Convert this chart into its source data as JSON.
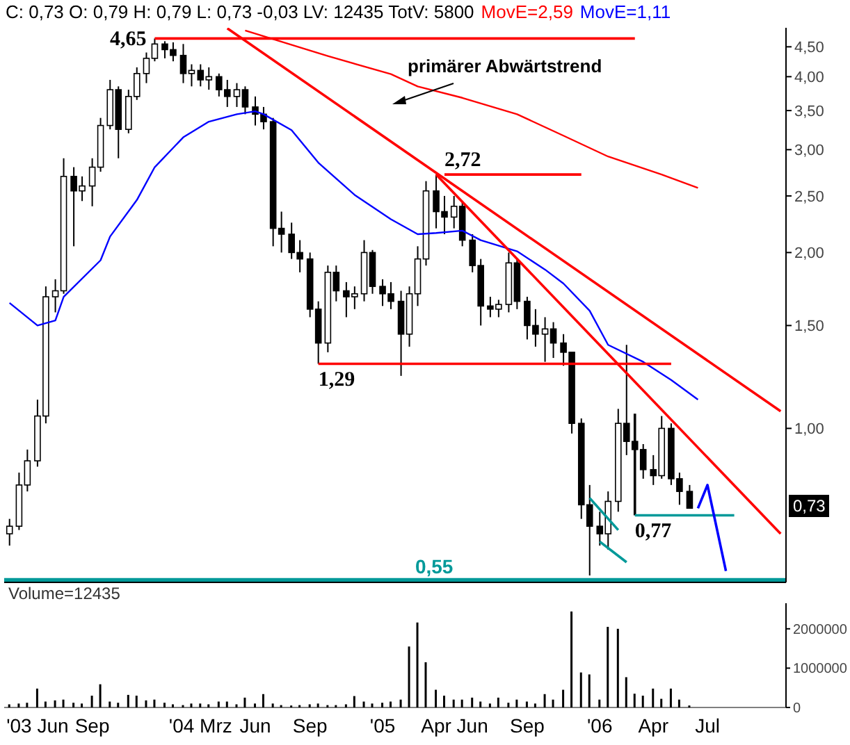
{
  "chart_data": [
    {
      "type": "candlestick",
      "title": "C: 0,73 O: 0,79 H: 0,79 L: 0,73 -0,03 LV: 12435 TotV: 5800",
      "legend": "top",
      "log": true,
      "tick_labels": "y",
      "color": "#000000",
      "x": [
        "2003-04-15",
        "2003-05-01",
        "2003-05-15",
        "2003-06-01",
        "2003-06-15",
        "2003-07-01",
        "2003-07-15",
        "2003-08-01",
        "2003-08-15",
        "2003-09-01",
        "2003-09-15",
        "2003-10-01",
        "2003-10-15",
        "2003-11-01",
        "2003-11-15",
        "2003-12-01",
        "2003-12-15",
        "2004-01-01",
        "2004-01-15",
        "2004-02-01",
        "2004-02-15",
        "2004-03-01",
        "2004-03-15",
        "2004-04-01",
        "2004-04-15",
        "2004-05-01",
        "2004-05-15",
        "2004-06-01",
        "2004-06-15",
        "2004-07-01",
        "2004-07-15",
        "2004-08-01",
        "2004-08-15",
        "2004-09-01",
        "2004-09-15",
        "2004-10-01",
        "2004-10-15",
        "2004-11-01",
        "2004-11-15",
        "2004-12-01",
        "2004-12-15",
        "2005-01-01",
        "2005-01-15",
        "2005-02-01",
        "2005-02-15",
        "2005-03-01",
        "2005-03-15",
        "2005-04-01",
        "2005-04-15",
        "2005-05-01",
        "2005-05-15",
        "2005-06-01",
        "2005-06-15",
        "2005-07-01",
        "2005-07-15",
        "2005-08-01",
        "2005-08-15",
        "2005-09-01",
        "2005-09-15",
        "2005-10-01",
        "2005-10-15",
        "2005-11-01",
        "2005-11-15",
        "2005-12-01",
        "2005-12-15",
        "2006-01-01",
        "2006-01-15",
        "2006-02-01",
        "2006-02-15",
        "2006-03-01",
        "2006-03-15",
        "2006-04-01",
        "2006-04-15",
        "2006-05-01",
        "2006-05-15",
        "2006-06-01"
      ],
      "ohlc": [
        [
          0.66,
          0.7,
          0.63,
          0.68
        ],
        [
          0.68,
          0.84,
          0.67,
          0.8
        ],
        [
          0.8,
          0.92,
          0.78,
          0.88
        ],
        [
          0.88,
          1.12,
          0.86,
          1.05
        ],
        [
          1.05,
          1.75,
          1.02,
          1.68
        ],
        [
          1.68,
          1.8,
          1.58,
          1.72
        ],
        [
          1.72,
          2.9,
          1.7,
          2.7
        ],
        [
          2.7,
          2.8,
          2.05,
          2.55
        ],
        [
          2.55,
          2.7,
          2.45,
          2.6
        ],
        [
          2.6,
          2.9,
          2.4,
          2.8
        ],
        [
          2.8,
          3.4,
          2.75,
          3.3
        ],
        [
          3.3,
          3.95,
          3.25,
          3.8
        ],
        [
          3.8,
          3.85,
          2.9,
          3.25
        ],
        [
          3.25,
          3.8,
          3.2,
          3.7
        ],
        [
          3.7,
          4.15,
          3.65,
          4.05
        ],
        [
          4.05,
          4.4,
          3.9,
          4.3
        ],
        [
          4.3,
          4.65,
          4.25,
          4.55
        ],
        [
          4.55,
          4.6,
          4.3,
          4.45
        ],
        [
          4.45,
          4.58,
          4.25,
          4.35
        ],
        [
          4.35,
          4.55,
          3.9,
          4.05
        ],
        [
          4.05,
          4.2,
          3.85,
          4.1
        ],
        [
          4.1,
          4.2,
          3.85,
          3.95
        ],
        [
          3.95,
          4.15,
          3.8,
          4.0
        ],
        [
          4.0,
          4.05,
          3.7,
          3.8
        ],
        [
          3.8,
          3.95,
          3.55,
          3.7
        ],
        [
          3.7,
          3.9,
          3.55,
          3.8
        ],
        [
          3.8,
          3.85,
          3.45,
          3.55
        ],
        [
          3.55,
          3.7,
          3.3,
          3.45
        ],
        [
          3.45,
          3.55,
          3.25,
          3.35
        ],
        [
          3.35,
          3.4,
          2.05,
          2.2
        ],
        [
          2.2,
          2.35,
          2.0,
          2.15
        ],
        [
          2.15,
          2.25,
          1.95,
          2.0
        ],
        [
          2.0,
          2.1,
          1.85,
          1.95
        ],
        [
          1.95,
          2.0,
          1.55,
          1.6
        ],
        [
          1.6,
          1.65,
          1.29,
          1.4
        ],
        [
          1.4,
          1.9,
          1.35,
          1.85
        ],
        [
          1.85,
          1.9,
          1.65,
          1.72
        ],
        [
          1.72,
          1.78,
          1.55,
          1.68
        ],
        [
          1.68,
          1.75,
          1.6,
          1.7
        ],
        [
          1.7,
          2.1,
          1.65,
          2.0
        ],
        [
          2.0,
          2.02,
          1.7,
          1.75
        ],
        [
          1.75,
          1.8,
          1.62,
          1.7
        ],
        [
          1.7,
          1.78,
          1.6,
          1.65
        ],
        [
          1.65,
          1.72,
          1.23,
          1.45
        ],
        [
          1.45,
          1.75,
          1.38,
          1.7
        ],
        [
          1.7,
          2.05,
          1.62,
          1.95
        ],
        [
          1.95,
          2.65,
          1.9,
          2.55
        ],
        [
          2.55,
          2.72,
          2.2,
          2.35
        ],
        [
          2.35,
          2.5,
          2.15,
          2.3
        ],
        [
          2.3,
          2.5,
          2.2,
          2.4
        ],
        [
          2.4,
          2.45,
          2.05,
          2.1
        ],
        [
          2.1,
          2.15,
          1.85,
          1.9
        ],
        [
          1.9,
          1.95,
          1.5,
          1.62
        ],
        [
          1.62,
          1.68,
          1.55,
          1.6
        ],
        [
          1.6,
          1.66,
          1.55,
          1.63
        ],
        [
          1.63,
          2.0,
          1.58,
          1.92
        ],
        [
          1.92,
          1.95,
          1.6,
          1.65
        ],
        [
          1.65,
          1.68,
          1.42,
          1.5
        ],
        [
          1.5,
          1.6,
          1.38,
          1.45
        ],
        [
          1.45,
          1.55,
          1.3,
          1.48
        ],
        [
          1.48,
          1.52,
          1.32,
          1.4
        ],
        [
          1.4,
          1.45,
          1.28,
          1.35
        ],
        [
          1.35,
          1.35,
          0.98,
          1.02
        ],
        [
          1.02,
          1.04,
          0.7,
          0.74
        ],
        [
          0.74,
          0.8,
          0.56,
          0.68
        ],
        [
          0.68,
          0.72,
          0.63,
          0.66
        ],
        [
          0.66,
          0.78,
          0.62,
          0.75
        ],
        [
          0.75,
          1.08,
          0.72,
          1.02
        ],
        [
          1.02,
          1.39,
          0.9,
          0.95
        ],
        [
          0.95,
          1.0,
          0.88,
          0.92
        ],
        [
          0.92,
          0.94,
          0.82,
          0.85
        ],
        [
          0.85,
          0.9,
          0.8,
          0.83
        ],
        [
          0.83,
          1.05,
          0.82,
          1.0
        ],
        [
          1.0,
          1.02,
          0.8,
          0.82
        ],
        [
          0.82,
          0.84,
          0.74,
          0.78
        ],
        [
          0.78,
          0.8,
          0.73,
          0.73
        ]
      ],
      "series": [
        {
          "type": "line",
          "name": "MovE=2,59",
          "color": "#ff0000",
          "x": [
            "2004-05-15",
            "2004-10-01",
            "2005-01-15",
            "2005-03-01",
            "2005-05-15",
            "2005-08-15",
            "2005-11-01",
            "2006-01-15",
            "2006-04-15",
            "2006-06-15"
          ],
          "values": [
            4.8,
            4.34,
            4.04,
            3.85,
            3.68,
            3.45,
            3.17,
            2.92,
            2.72,
            2.58
          ]
        },
        {
          "type": "line",
          "name": "MovE=1,11",
          "color": "#0000ff",
          "x": [
            "2003-04-15",
            "2003-06-01",
            "2003-07-01",
            "2003-07-15",
            "2003-09-15",
            "2003-10-01",
            "2003-11-15",
            "2003-12-15",
            "2004-02-01",
            "2004-03-15",
            "2004-05-01",
            "2004-06-01",
            "2004-06-15",
            "2004-08-01",
            "2004-09-15",
            "2004-11-15",
            "2005-01-15",
            "2005-03-01",
            "2005-04-01",
            "2005-05-15",
            "2005-06-15",
            "2005-08-15",
            "2005-10-01",
            "2005-11-01",
            "2005-12-15",
            "2006-01-15",
            "2006-03-15",
            "2006-05-01",
            "2006-06-15"
          ],
          "values": [
            1.64,
            1.5,
            1.53,
            1.68,
            1.94,
            2.13,
            2.46,
            2.8,
            3.15,
            3.35,
            3.45,
            3.49,
            3.45,
            3.24,
            2.85,
            2.51,
            2.28,
            2.15,
            2.16,
            2.18,
            2.1,
            2.01,
            1.87,
            1.77,
            1.59,
            1.39,
            1.3,
            1.21,
            1.12
          ]
        },
        {
          "type": "line",
          "color": "#ff0000",
          "x": [
            "2004-04-15",
            "2006-11-01"
          ],
          "values": [
            4.84,
            1.07
          ]
        },
        {
          "type": "line",
          "color": "#ff0000",
          "x": [
            "2005-04-01",
            "2006-11-01"
          ],
          "values": [
            2.72,
            0.66
          ]
        },
        {
          "type": "line",
          "color": "#ff0000",
          "x": [
            "2003-12-15",
            "2006-03-01"
          ],
          "values": [
            4.65,
            4.65
          ]
        },
        {
          "type": "line",
          "color": "#ff0000",
          "x": [
            "2005-04-15",
            "2005-12-01"
          ],
          "values": [
            2.72,
            2.72
          ]
        },
        {
          "type": "line",
          "color": "#ff0000",
          "x": [
            "2004-09-15",
            "2006-05-01"
          ],
          "values": [
            1.29,
            1.29
          ]
        },
        {
          "type": "line",
          "color": "#000000",
          "x": [
            "2006-03-01",
            "2006-03-01"
          ],
          "values": [
            1.06,
            0.71
          ]
        },
        {
          "type": "line",
          "color": "#009999",
          "x": [
            "2006-03-01",
            "2006-08-15"
          ],
          "values": [
            0.71,
            0.71
          ]
        },
        {
          "type": "line",
          "color": "#009999",
          "x": [
            "2005-12-15",
            "2006-02-01"
          ],
          "values": [
            0.76,
            0.67
          ]
        },
        {
          "type": "line",
          "color": "#009999",
          "x": [
            "2006-01-01",
            "2006-02-15"
          ],
          "values": [
            0.64,
            0.59
          ]
        },
        {
          "type": "line",
          "color": "#0000ff",
          "x": [
            "2006-06-15",
            "2006-07-01",
            "2006-08-01"
          ],
          "values": [
            0.73,
            0.8,
            0.57
          ]
        }
      ],
      "ref_lines": [
        {
          "axis": "y",
          "value": 0.55,
          "label": "0,55",
          "color": "#009999"
        }
      ],
      "annotations": [
        {
          "text": "4,65",
          "x": "2003-12-15",
          "y": 4.65
        },
        {
          "text": "2,72",
          "x": "2005-04-15",
          "y": 2.72
        },
        {
          "text": "1,29",
          "x": "2004-09-15",
          "y": 1.29
        },
        {
          "text": "0,77",
          "x": "2006-03-01",
          "y": 0.71
        },
        "primärer Abwärtstrend",
        "0,73"
      ],
      "xlim": [
        "2003-04-06",
        "2006-11-10"
      ],
      "ylim": [
        0.545,
        4.85
      ],
      "yticks": [
        {
          "value": 1,
          "label": "1,00"
        },
        {
          "value": 1.5,
          "label": "1,50"
        },
        {
          "value": 2,
          "label": "2,00"
        },
        {
          "value": 2.5,
          "label": "2,50"
        },
        {
          "value": 3,
          "label": "3,00"
        },
        {
          "value": 3.5,
          "label": "3,50"
        },
        {
          "value": 4,
          "label": "4,00"
        },
        {
          "value": 4.5,
          "label": "4,50"
        }
      ]
    },
    {
      "type": "bar",
      "title": "Volume=12435",
      "color": "#000000",
      "x": [
        "2003-04-15",
        "2003-05-01",
        "2003-05-15",
        "2003-06-01",
        "2003-06-15",
        "2003-07-01",
        "2003-07-15",
        "2003-08-01",
        "2003-08-15",
        "2003-09-01",
        "2003-09-15",
        "2003-10-01",
        "2003-10-15",
        "2003-11-01",
        "2003-11-15",
        "2003-12-01",
        "2003-12-15",
        "2004-01-01",
        "2004-01-15",
        "2004-02-01",
        "2004-02-15",
        "2004-03-01",
        "2004-03-15",
        "2004-04-01",
        "2004-04-15",
        "2004-05-01",
        "2004-05-15",
        "2004-06-01",
        "2004-06-15",
        "2004-07-01",
        "2004-07-15",
        "2004-08-01",
        "2004-08-15",
        "2004-09-01",
        "2004-09-15",
        "2004-10-01",
        "2004-10-15",
        "2004-11-01",
        "2004-11-15",
        "2004-12-01",
        "2004-12-15",
        "2005-01-01",
        "2005-01-15",
        "2005-02-01",
        "2005-02-15",
        "2005-03-01",
        "2005-03-15",
        "2005-04-01",
        "2005-04-15",
        "2005-05-01",
        "2005-05-15",
        "2005-06-01",
        "2005-06-15",
        "2005-07-01",
        "2005-07-15",
        "2005-08-01",
        "2005-08-15",
        "2005-09-01",
        "2005-09-15",
        "2005-10-01",
        "2005-10-15",
        "2005-11-01",
        "2005-11-15",
        "2005-12-01",
        "2005-12-15",
        "2006-01-01",
        "2006-01-15",
        "2006-02-01",
        "2006-02-15",
        "2006-03-01",
        "2006-03-15",
        "2006-04-01",
        "2006-04-15",
        "2006-05-01",
        "2006-05-15",
        "2006-06-01"
      ],
      "values": [
        80000,
        100000,
        120000,
        480000,
        150000,
        180000,
        200000,
        120000,
        100000,
        300000,
        590000,
        150000,
        120000,
        320000,
        300000,
        180000,
        200000,
        120000,
        80000,
        60000,
        100000,
        100000,
        80000,
        150000,
        150000,
        80000,
        250000,
        100000,
        340000,
        100000,
        60000,
        50000,
        60000,
        80000,
        100000,
        60000,
        60000,
        80000,
        290000,
        150000,
        100000,
        120000,
        150000,
        200000,
        1550000,
        2160000,
        1150000,
        450000,
        300000,
        200000,
        200000,
        250000,
        150000,
        100000,
        250000,
        120000,
        200000,
        150000,
        100000,
        340000,
        200000,
        450000,
        2440000,
        890000,
        840000,
        200000,
        2050000,
        2000000,
        770000,
        350000,
        300000,
        480000,
        220000,
        480000,
        200000,
        50000
      ],
      "xlim": [
        "2003-04-06",
        "2006-11-10"
      ],
      "ylim": [
        0,
        2650000
      ],
      "yticks": [
        0,
        1000000,
        2000000
      ],
      "xticks": [
        {
          "value": "2003-06-01",
          "label": "'03 Jun"
        },
        {
          "value": "2003-09-01",
          "label": "Sep"
        },
        {
          "value": "2004-03-01",
          "label": "'04 Mrz"
        },
        {
          "value": "2004-06-01",
          "label": "Jun"
        },
        {
          "value": "2004-09-01",
          "label": "Sep"
        },
        {
          "value": "2005-01-01",
          "label": "'05"
        },
        {
          "value": "2005-04-01",
          "label": "Apr"
        },
        {
          "value": "2005-06-01",
          "label": "Jun"
        },
        {
          "value": "2005-09-01",
          "label": "Sep"
        },
        {
          "value": "2006-01-01",
          "label": "'06"
        },
        {
          "value": "2006-04-01",
          "label": "Apr"
        },
        {
          "value": "2006-07-01",
          "label": "Jul"
        }
      ]
    }
  ]
}
